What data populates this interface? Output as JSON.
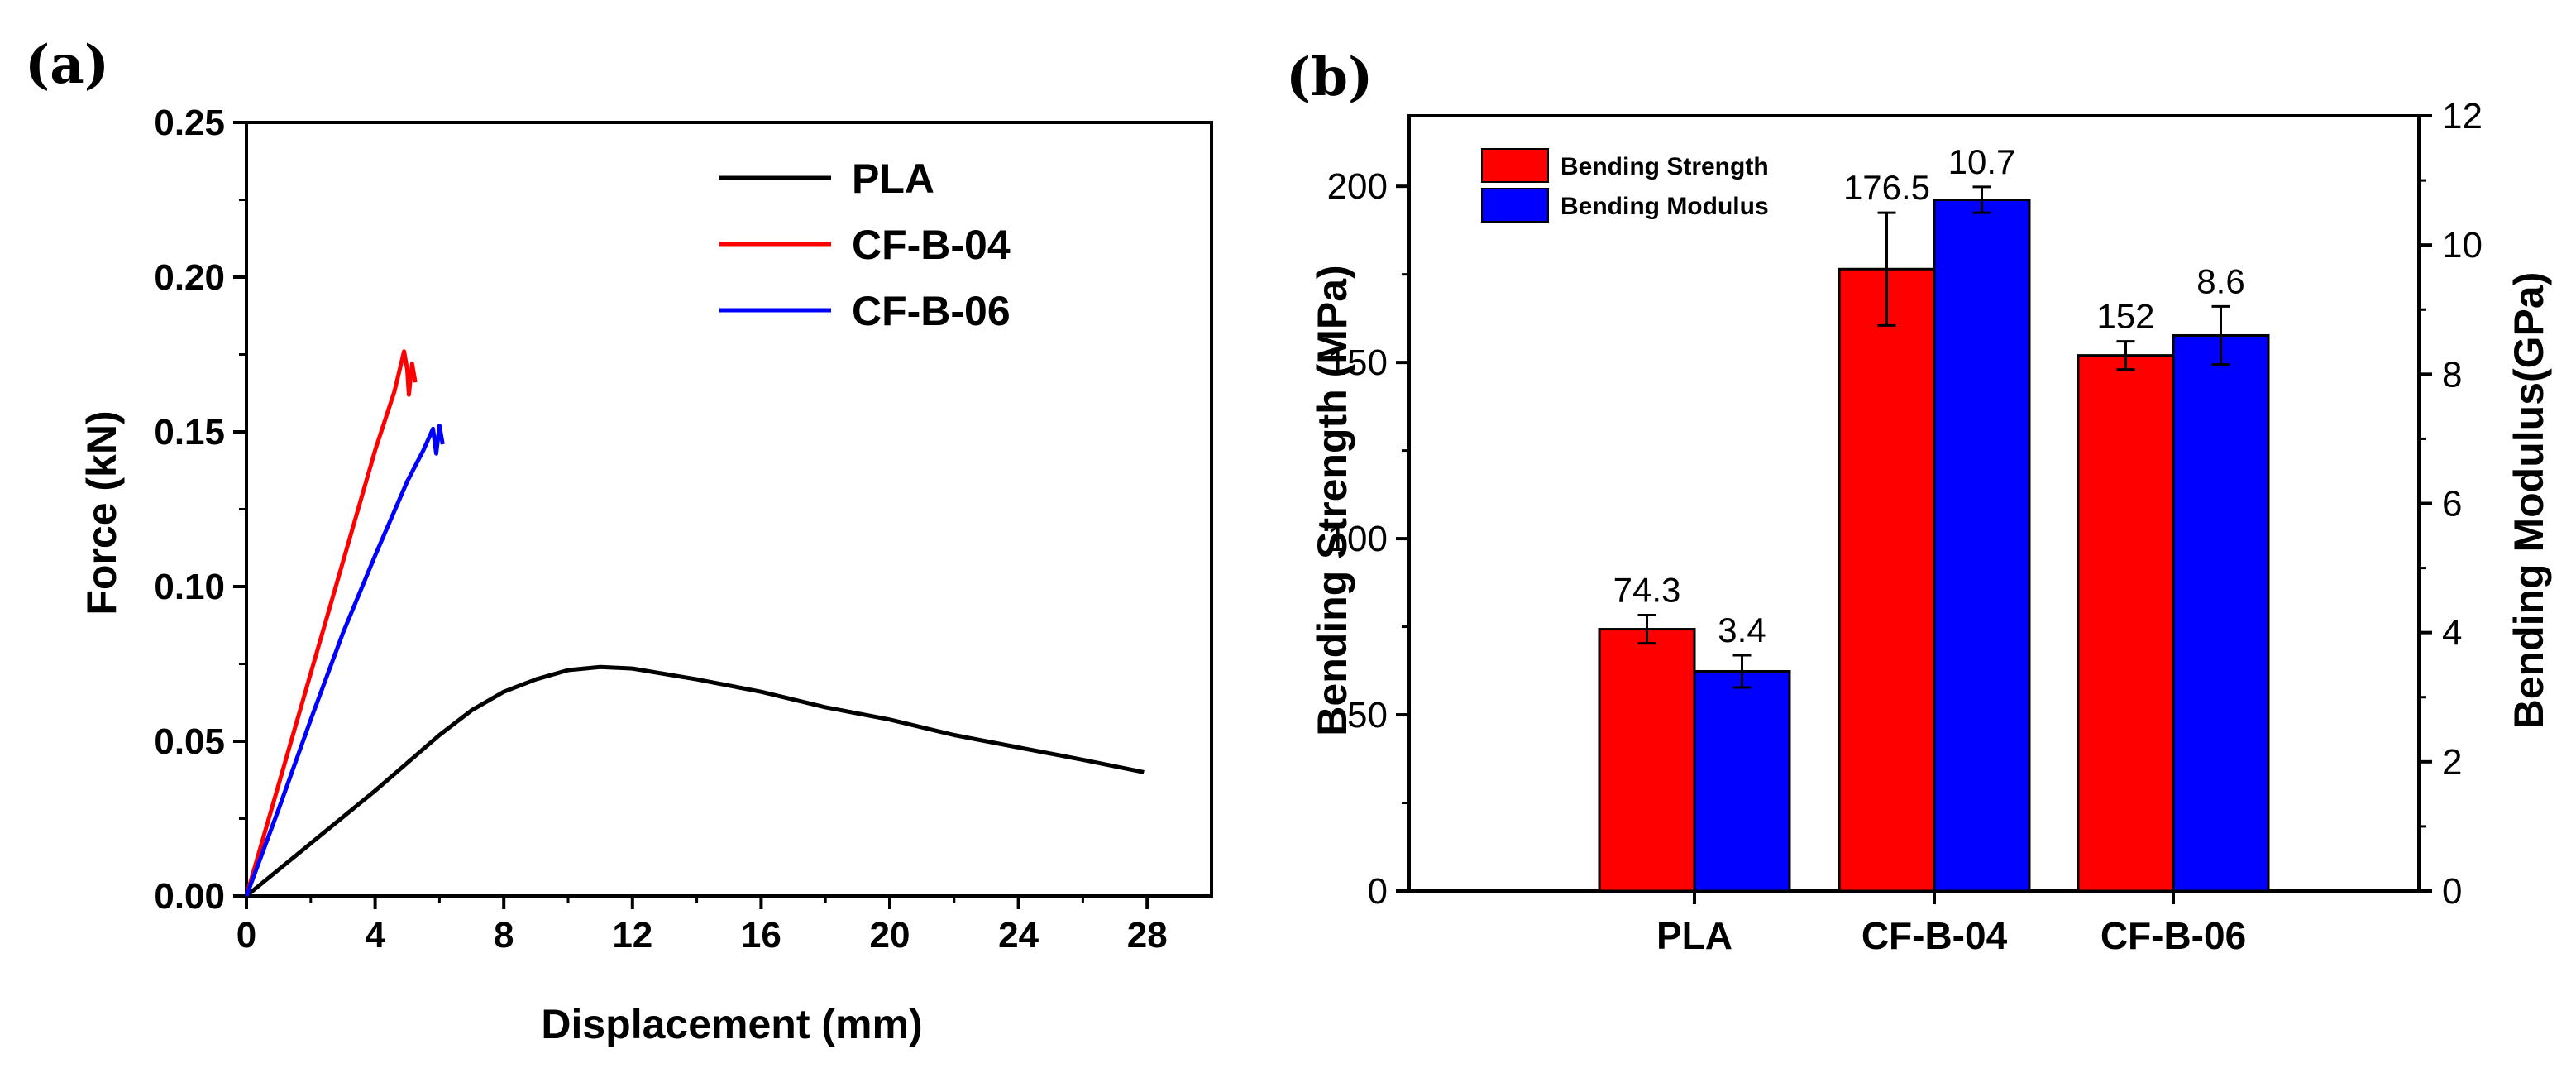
{
  "chart_data": [
    {
      "panel": "(a)",
      "type": "line",
      "xlabel": "Displacement (mm)",
      "ylabel": "Force (kN)",
      "xlim": [
        0,
        30
      ],
      "ylim": [
        0,
        0.25
      ],
      "xticks": [
        0,
        4,
        8,
        12,
        16,
        20,
        24,
        28
      ],
      "yticks": [
        0.0,
        0.05,
        0.1,
        0.15,
        0.2,
        0.25
      ],
      "xtick_labels": [
        "0",
        "4",
        "8",
        "12",
        "16",
        "20",
        "24",
        "28"
      ],
      "ytick_labels": [
        "0.00",
        "0.05",
        "0.10",
        "0.15",
        "0.20",
        "0.25"
      ],
      "legend_position": "top-right",
      "series": [
        {
          "name": "PLA",
          "color": "#000000",
          "x": [
            0,
            2,
            4,
            6,
            7,
            8,
            9,
            10,
            11,
            12,
            14,
            16,
            18,
            20,
            22,
            24,
            26,
            27.9
          ],
          "y": [
            0,
            0.017,
            0.034,
            0.052,
            0.06,
            0.066,
            0.07,
            0.073,
            0.074,
            0.0735,
            0.07,
            0.066,
            0.061,
            0.057,
            0.052,
            0.048,
            0.044,
            0.04
          ]
        },
        {
          "name": "CF-B-04",
          "color": "#ff0000",
          "x": [
            0,
            1,
            2,
            3,
            4,
            4.6,
            4.9,
            5.0,
            5.05,
            5.15,
            5.25
          ],
          "y": [
            0,
            0.036,
            0.072,
            0.108,
            0.144,
            0.163,
            0.176,
            0.17,
            0.162,
            0.172,
            0.166
          ]
        },
        {
          "name": "CF-B-06",
          "color": "#0000ff",
          "x": [
            0,
            1,
            2,
            3,
            4,
            5,
            5.5,
            5.8,
            5.9,
            6.0,
            6.1
          ],
          "y": [
            0,
            0.028,
            0.057,
            0.085,
            0.11,
            0.134,
            0.144,
            0.151,
            0.143,
            0.152,
            0.146
          ]
        }
      ]
    },
    {
      "panel": "(b)",
      "type": "bar",
      "categories": [
        "PLA",
        "CF-B-04",
        "CF-B-06"
      ],
      "ylabel": "Bending Strength (MPa)",
      "y2label": "Bending Modulus(GPa)",
      "ylim": [
        0,
        220
      ],
      "y2lim": [
        0,
        12
      ],
      "yticks": [
        0,
        50,
        100,
        150,
        200
      ],
      "y2ticks": [
        0,
        2,
        4,
        6,
        8,
        10,
        12
      ],
      "ytick_labels": [
        "0",
        "50",
        "100",
        "150",
        "200"
      ],
      "y2tick_labels": [
        "0",
        "2",
        "4",
        "6",
        "8",
        "10",
        "12"
      ],
      "legend_position": "top-left",
      "series": [
        {
          "name": "Bending Strength",
          "axis": "left",
          "color": "#ff0000",
          "values": [
            74.3,
            176.5,
            152
          ],
          "errors": [
            4,
            16,
            4
          ],
          "labels": [
            "74.3",
            "176.5",
            "152"
          ]
        },
        {
          "name": "Bending Modulus",
          "axis": "right",
          "color": "#0000ff",
          "values": [
            3.4,
            10.7,
            8.6
          ],
          "errors": [
            0.25,
            0.2,
            0.45
          ],
          "labels": [
            "3.4",
            "10.7",
            "8.6"
          ]
        }
      ]
    }
  ]
}
